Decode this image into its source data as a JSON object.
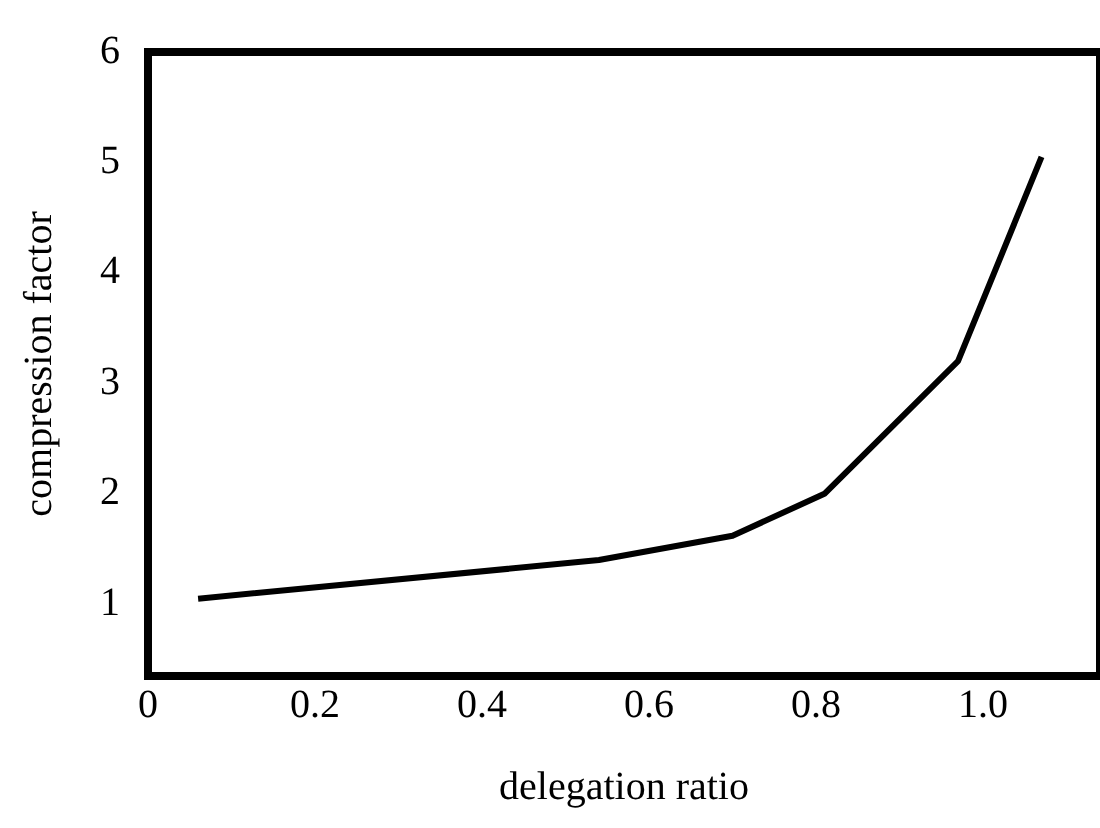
{
  "chart_data": {
    "type": "line",
    "xlabel": "delegation ratio",
    "ylabel": "compression factor",
    "series": [
      {
        "color": "#000000",
        "x": [
          0.06,
          0.54,
          0.7,
          0.81,
          0.97,
          1.07
        ],
        "values": [
          1.05,
          1.4,
          1.62,
          2.0,
          3.2,
          5.05
        ]
      }
    ],
    "xlim": [
      0,
      1.14
    ],
    "ylim": [
      0.35,
      6
    ],
    "xticks": [
      0,
      0.2,
      0.4,
      0.6,
      0.8,
      {
        "value": 1,
        "label": "1.0"
      }
    ],
    "yticks": [
      1,
      2,
      3,
      4,
      5,
      6
    ],
    "grid": false,
    "legend": false,
    "marker": "none",
    "line_style": "solid"
  }
}
